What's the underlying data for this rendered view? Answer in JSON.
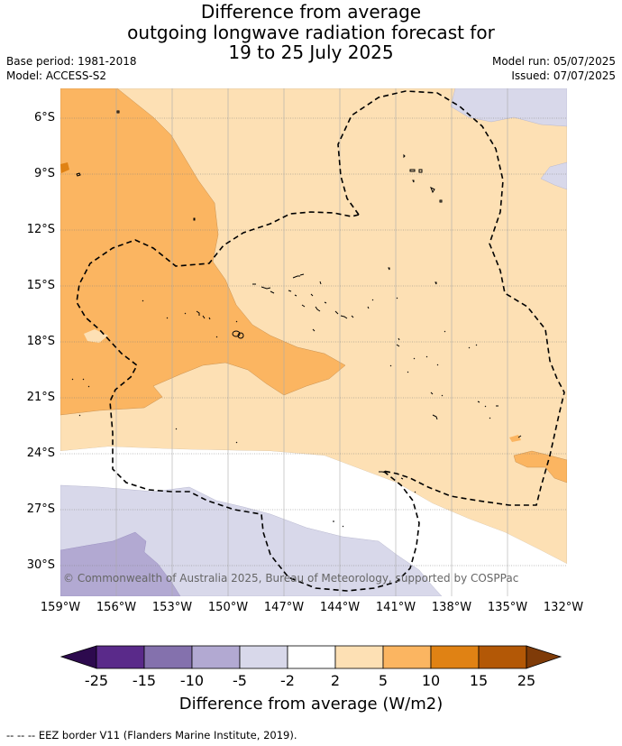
{
  "title": {
    "line1": "Difference from average",
    "line2": "outgoing longwave radiation forecast for",
    "line3": "19 to 25 July 2025"
  },
  "meta": {
    "base_period": "Base period: 1981-2018",
    "model": "Model: ACCESS-S2",
    "model_run": "Model run: 05/07/2025",
    "issued": "Issued: 07/07/2025"
  },
  "map": {
    "lat_labels": [
      "6°S",
      "9°S",
      "12°S",
      "15°S",
      "18°S",
      "21°S",
      "24°S",
      "27°S",
      "30°S"
    ],
    "lon_labels": [
      "159°W",
      "156°W",
      "153°W",
      "150°W",
      "147°W",
      "144°W",
      "141°W",
      "138°W",
      "135°W",
      "132°W"
    ],
    "copyright": "© Commonwealth of Australia 2025, Bureau of Meteorology, supported by COSPPac"
  },
  "colorbar": {
    "ticks": [
      "-25",
      "-15",
      "-10",
      "-5",
      "-2",
      "2",
      "5",
      "10",
      "15",
      "25"
    ],
    "colors": [
      "#2d0a4e",
      "#5a2a8a",
      "#8471ad",
      "#b2a9d2",
      "#d8d8ea",
      "#ffffff",
      "#fde0b4",
      "#fbb561",
      "#e08214",
      "#b35806",
      "#7f3b08"
    ],
    "title": "Difference from average (W/m2)"
  },
  "footnote": "--  --  -- EEZ border V11 (Flanders Marine Institute, 2019)."
}
